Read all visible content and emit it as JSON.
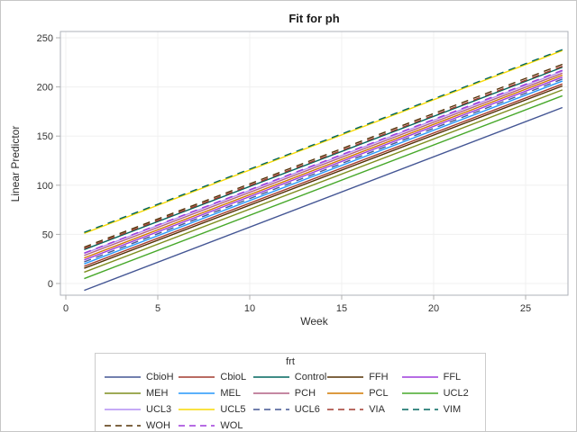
{
  "title": "Fit for ph",
  "x_axis": {
    "label": "Week",
    "ticks": [
      0,
      5,
      10,
      15,
      20,
      25
    ],
    "min": -0.3,
    "max": 27.3
  },
  "y_axis": {
    "label": "Linear Predictor",
    "ticks": [
      0,
      50,
      100,
      150,
      200,
      250
    ],
    "min": -12,
    "max": 256
  },
  "legend": {
    "title": "frt"
  },
  "colors": {
    "plot_border": "#aeb2b8",
    "gridline": "#f0f0f0",
    "tick": "#b0b0b0",
    "tick_label": "#333333"
  },
  "chart_data": {
    "type": "line",
    "title": "Fit for ph",
    "xlabel": "Week",
    "ylabel": "Linear Predictor",
    "x_range_weeks": [
      1,
      27
    ],
    "xlim": [
      -0.3,
      27.3
    ],
    "ylim": [
      -12,
      256
    ],
    "grid": true,
    "legend_position": "bottom",
    "series": [
      {
        "name": "CbioH",
        "color": "#445694",
        "dashed": false,
        "start": -7,
        "end": 179
      },
      {
        "name": "CbioL",
        "color": "#A23A2E",
        "dashed": false,
        "start": 17.5,
        "end": 203
      },
      {
        "name": "Control",
        "color": "#01665E",
        "dashed": false,
        "start": 34.5,
        "end": 220
      },
      {
        "name": "FFH",
        "color": "#543005",
        "dashed": false,
        "start": 15.5,
        "end": 201
      },
      {
        "name": "FFL",
        "color": "#9D3CDB",
        "dashed": false,
        "start": 24,
        "end": 210
      },
      {
        "name": "MEH",
        "color": "#7F8E1F",
        "dashed": false,
        "start": 11.5,
        "end": 197
      },
      {
        "name": "MEL",
        "color": "#2597FA",
        "dashed": false,
        "start": 20,
        "end": 206
      },
      {
        "name": "PCH",
        "color": "#B26084",
        "dashed": false,
        "start": 28.5,
        "end": 214
      },
      {
        "name": "PCL",
        "color": "#D17800",
        "dashed": false,
        "start": 26,
        "end": 212
      },
      {
        "name": "UCL2",
        "color": "#47A82A",
        "dashed": false,
        "start": 5,
        "end": 191
      },
      {
        "name": "UCL3",
        "color": "#B38EF3",
        "dashed": false,
        "start": 30.5,
        "end": 216
      },
      {
        "name": "UCL5",
        "color": "#F9DA04",
        "dashed": false,
        "start": 51,
        "end": 237
      },
      {
        "name": "UCL6",
        "color": "#445694",
        "dashed": true,
        "start": 22,
        "end": 208
      },
      {
        "name": "VIA",
        "color": "#A23A2E",
        "dashed": true,
        "start": 35.5,
        "end": 221
      },
      {
        "name": "VIM",
        "color": "#01665E",
        "dashed": true,
        "start": 52,
        "end": 238
      },
      {
        "name": "WOH",
        "color": "#543005",
        "dashed": true,
        "start": 37,
        "end": 223
      },
      {
        "name": "WOL",
        "color": "#9D3CDB",
        "dashed": true,
        "start": 31,
        "end": 217
      }
    ]
  }
}
